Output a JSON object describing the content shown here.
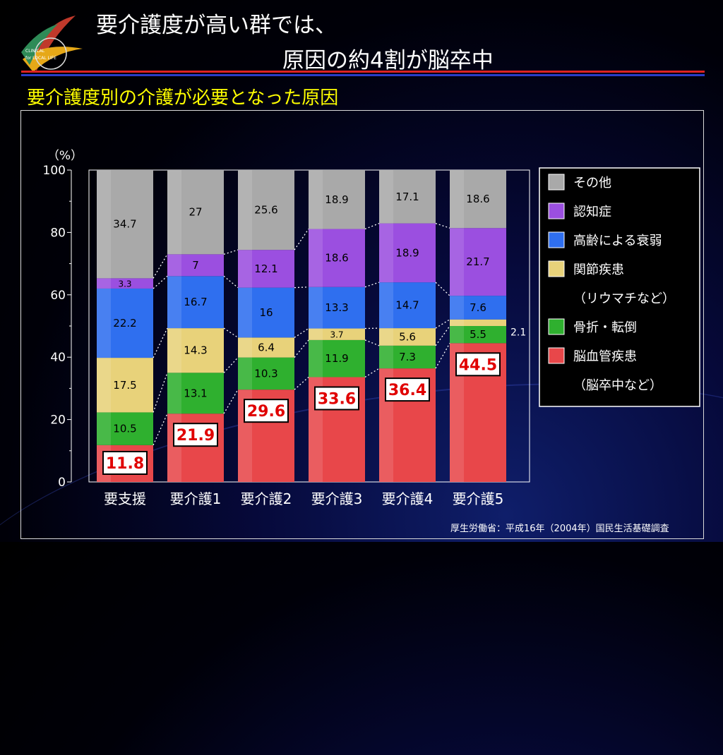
{
  "slide": {
    "title_line1": "要介護度が高い群では、",
    "title_line2": "原因の約4割が脳卒中",
    "subtitle": "要介護度別の介護が必要となった原因",
    "source": "厚生労働省：平成16年（2004年）国民生活基礎調査",
    "logo_text_1": "CLINICAL",
    "logo_text_2": "for LOCAL LIFE",
    "colors": {
      "title": "#ffffff",
      "subtitle": "#ffff00",
      "rule_red": "#dd2222",
      "rule_blue": "#2a3cc8"
    }
  },
  "chart_data": {
    "type": "bar",
    "stacked": true,
    "y_unit_label": "（%）",
    "ylim": [
      0,
      100
    ],
    "yticks": [
      0,
      20,
      40,
      60,
      80,
      100
    ],
    "categories": [
      "要支援",
      "要介護1",
      "要介護2",
      "要介護3",
      "要介護4",
      "要介護5"
    ],
    "series": [
      {
        "name": "脳血管疾患",
        "legend_sub": "（脳卒中など）",
        "color": "#e8474a",
        "values": [
          11.8,
          21.9,
          29.6,
          33.6,
          36.4,
          44.5
        ],
        "boxed_labels": true
      },
      {
        "name": "骨折・転倒",
        "color": "#2fb02f",
        "values": [
          10.5,
          13.1,
          10.3,
          11.9,
          7.3,
          5.5
        ]
      },
      {
        "name": "関節疾患",
        "legend_sub": "（リウマチなど）",
        "color": "#e8d27a",
        "values": [
          17.5,
          14.3,
          6.4,
          3.7,
          5.6,
          2.1
        ]
      },
      {
        "name": "高齢による衰弱",
        "color": "#2f6fef",
        "values": [
          22.2,
          16.7,
          16.0,
          13.3,
          14.7,
          7.6
        ]
      },
      {
        "name": "認知症",
        "color": "#9b4fe0",
        "values": [
          3.3,
          7.0,
          12.1,
          18.6,
          18.9,
          21.7
        ]
      },
      {
        "name": "その他",
        "color": "#a9a9a9",
        "values": [
          34.7,
          27.0,
          25.6,
          18.9,
          17.1,
          18.6
        ]
      }
    ],
    "legend_order": [
      "その他",
      "認知症",
      "高齢による衰弱",
      "関節疾患",
      "骨折・転倒",
      "脳血管疾患"
    ],
    "legend_placement": "right",
    "grid": false,
    "connectors": "dotted"
  }
}
